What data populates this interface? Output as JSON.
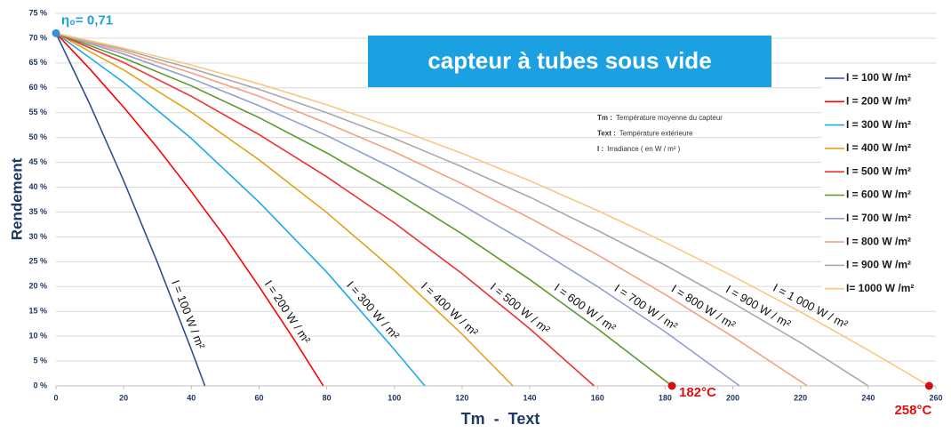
{
  "chart_data": {
    "type": "line",
    "title": "capteur à tubes sous vide",
    "x_label": "Tm  -  Text",
    "y_label": "Rendement",
    "xlim": [
      0,
      260
    ],
    "ylim": [
      0,
      75
    ],
    "xticks": [
      0,
      20,
      40,
      60,
      80,
      100,
      120,
      140,
      160,
      180,
      200,
      220,
      240,
      260
    ],
    "yticks": [
      {
        "value": 0,
        "label": "0 %"
      },
      {
        "value": 5,
        "label": "5 %"
      },
      {
        "value": 10,
        "label": "10 %"
      },
      {
        "value": 15,
        "label": "15 %"
      },
      {
        "value": 20,
        "label": "20 %"
      },
      {
        "value": 25,
        "label": "25 %"
      },
      {
        "value": 30,
        "label": "30 %"
      },
      {
        "value": 35,
        "label": "35 %"
      },
      {
        "value": 40,
        "label": "40 %"
      },
      {
        "value": 45,
        "label": "45 %"
      },
      {
        "value": 50,
        "label": "50 %"
      },
      {
        "value": 55,
        "label": "55 %"
      },
      {
        "value": 60,
        "label": "60 %"
      },
      {
        "value": 65,
        "label": "65 %"
      },
      {
        "value": 70,
        "label": "70 %"
      },
      {
        "value": 75,
        "label": "75 %"
      }
    ],
    "grid": true,
    "legend": "right",
    "notes": [
      {
        "term": "Tm :",
        "text": "Température moyenne du capteur"
      },
      {
        "term": "Text :",
        "text": "Température extérieure"
      },
      {
        "term": "I :",
        "text": "Irradiance ( en W / m² )"
      }
    ],
    "annotations": [
      {
        "x": 0,
        "y": 71,
        "label": "η₀= 0,71",
        "color": "#1ba1e2",
        "marker_color": "#3a8fd8"
      },
      {
        "x": 182,
        "y": 0,
        "label": "182°C",
        "color": "#e01010",
        "marker_color": "#d01010"
      },
      {
        "x": 258,
        "y": 0,
        "label": "258°C",
        "color": "#e01010",
        "marker_color": "#d01010"
      }
    ],
    "series": [
      {
        "name": "I = 100 W /m²",
        "label": "I = 100 W / m²",
        "color": "#2f4f8f",
        "x": [
          0,
          10,
          20,
          30,
          40,
          44
        ],
        "values": [
          71,
          56.7,
          41.3,
          24.8,
          7.3,
          0
        ]
      },
      {
        "name": "I = 200 W /m²",
        "label": "I = 200 W / m²",
        "color": "#ff0000",
        "x": [
          0,
          10,
          20,
          30,
          40,
          50,
          60,
          70,
          79
        ],
        "values": [
          71,
          63.8,
          56.1,
          47.9,
          39.1,
          29.9,
          20.0,
          9.7,
          0
        ]
      },
      {
        "name": "I = 300 W /m²",
        "label": "I = 300 W / m²",
        "color": "#1ea8e8",
        "x": [
          0,
          20,
          40,
          60,
          80,
          100,
          109
        ],
        "values": [
          71,
          61.1,
          49.8,
          37.0,
          22.9,
          7.3,
          0
        ]
      },
      {
        "name": "I = 400 W /m²",
        "label": "I = 400 W / m²",
        "color": "#e3a21a",
        "x": [
          0,
          20,
          40,
          60,
          80,
          100,
          120,
          135
        ],
        "values": [
          71,
          63.6,
          55.1,
          45.5,
          34.9,
          23.2,
          10.4,
          0
        ]
      },
      {
        "name": "I = 500 W /m²",
        "label": "I = 500 W / m²",
        "color": "#f03030",
        "x": [
          0,
          20,
          40,
          60,
          80,
          100,
          120,
          140,
          159
        ],
        "values": [
          71,
          65.1,
          58.3,
          50.6,
          42.1,
          32.8,
          22.6,
          11.5,
          0
        ]
      },
      {
        "name": "I = 600 W /m²",
        "label": "I = 600 W / m²",
        "color": "#5a9a2a",
        "x": [
          0,
          20,
          40,
          60,
          80,
          100,
          120,
          140,
          160,
          182
        ],
        "values": [
          71,
          66.0,
          60.4,
          54.0,
          46.9,
          39.1,
          30.6,
          21.4,
          11.5,
          0
        ]
      },
      {
        "name": "I = 700 W /m²",
        "label": "I = 700 W / m²",
        "color": "#8ea0d0",
        "x": [
          0,
          20,
          40,
          60,
          80,
          100,
          120,
          140,
          160,
          180,
          202
        ],
        "values": [
          71,
          66.8,
          61.9,
          56.4,
          50.4,
          43.7,
          36.4,
          28.5,
          20.0,
          10.9,
          0
        ]
      },
      {
        "name": "I = 800 W /m²",
        "label": "I = 800 W / m²",
        "color": "#f4a080",
        "x": [
          0,
          20,
          40,
          60,
          80,
          100,
          120,
          140,
          160,
          180,
          200,
          222
        ],
        "values": [
          71,
          67.3,
          63.0,
          58.3,
          52.9,
          47.1,
          40.7,
          33.8,
          26.4,
          18.4,
          9.9,
          0
        ]
      },
      {
        "name": "I = 900 W /m²",
        "label": "I = 900 W / m²",
        "color": "#a8a8a8",
        "x": [
          0,
          20,
          40,
          60,
          80,
          100,
          120,
          140,
          160,
          180,
          200,
          220,
          240
        ],
        "values": [
          71,
          67.7,
          63.9,
          59.7,
          55.0,
          49.8,
          44.1,
          38.0,
          31.3,
          24.3,
          16.7,
          8.7,
          0
        ]
      },
      {
        "name": "I= 1000 W /m²",
        "label": "I = 1 000 W / m²",
        "color": "#f8c880",
        "x": [
          0,
          20,
          40,
          60,
          80,
          100,
          120,
          140,
          160,
          180,
          200,
          220,
          240,
          258
        ],
        "values": [
          71,
          68.0,
          64.6,
          60.8,
          56.6,
          51.9,
          46.8,
          41.3,
          35.3,
          28.9,
          22.1,
          14.9,
          7.2,
          0
        ]
      }
    ]
  }
}
